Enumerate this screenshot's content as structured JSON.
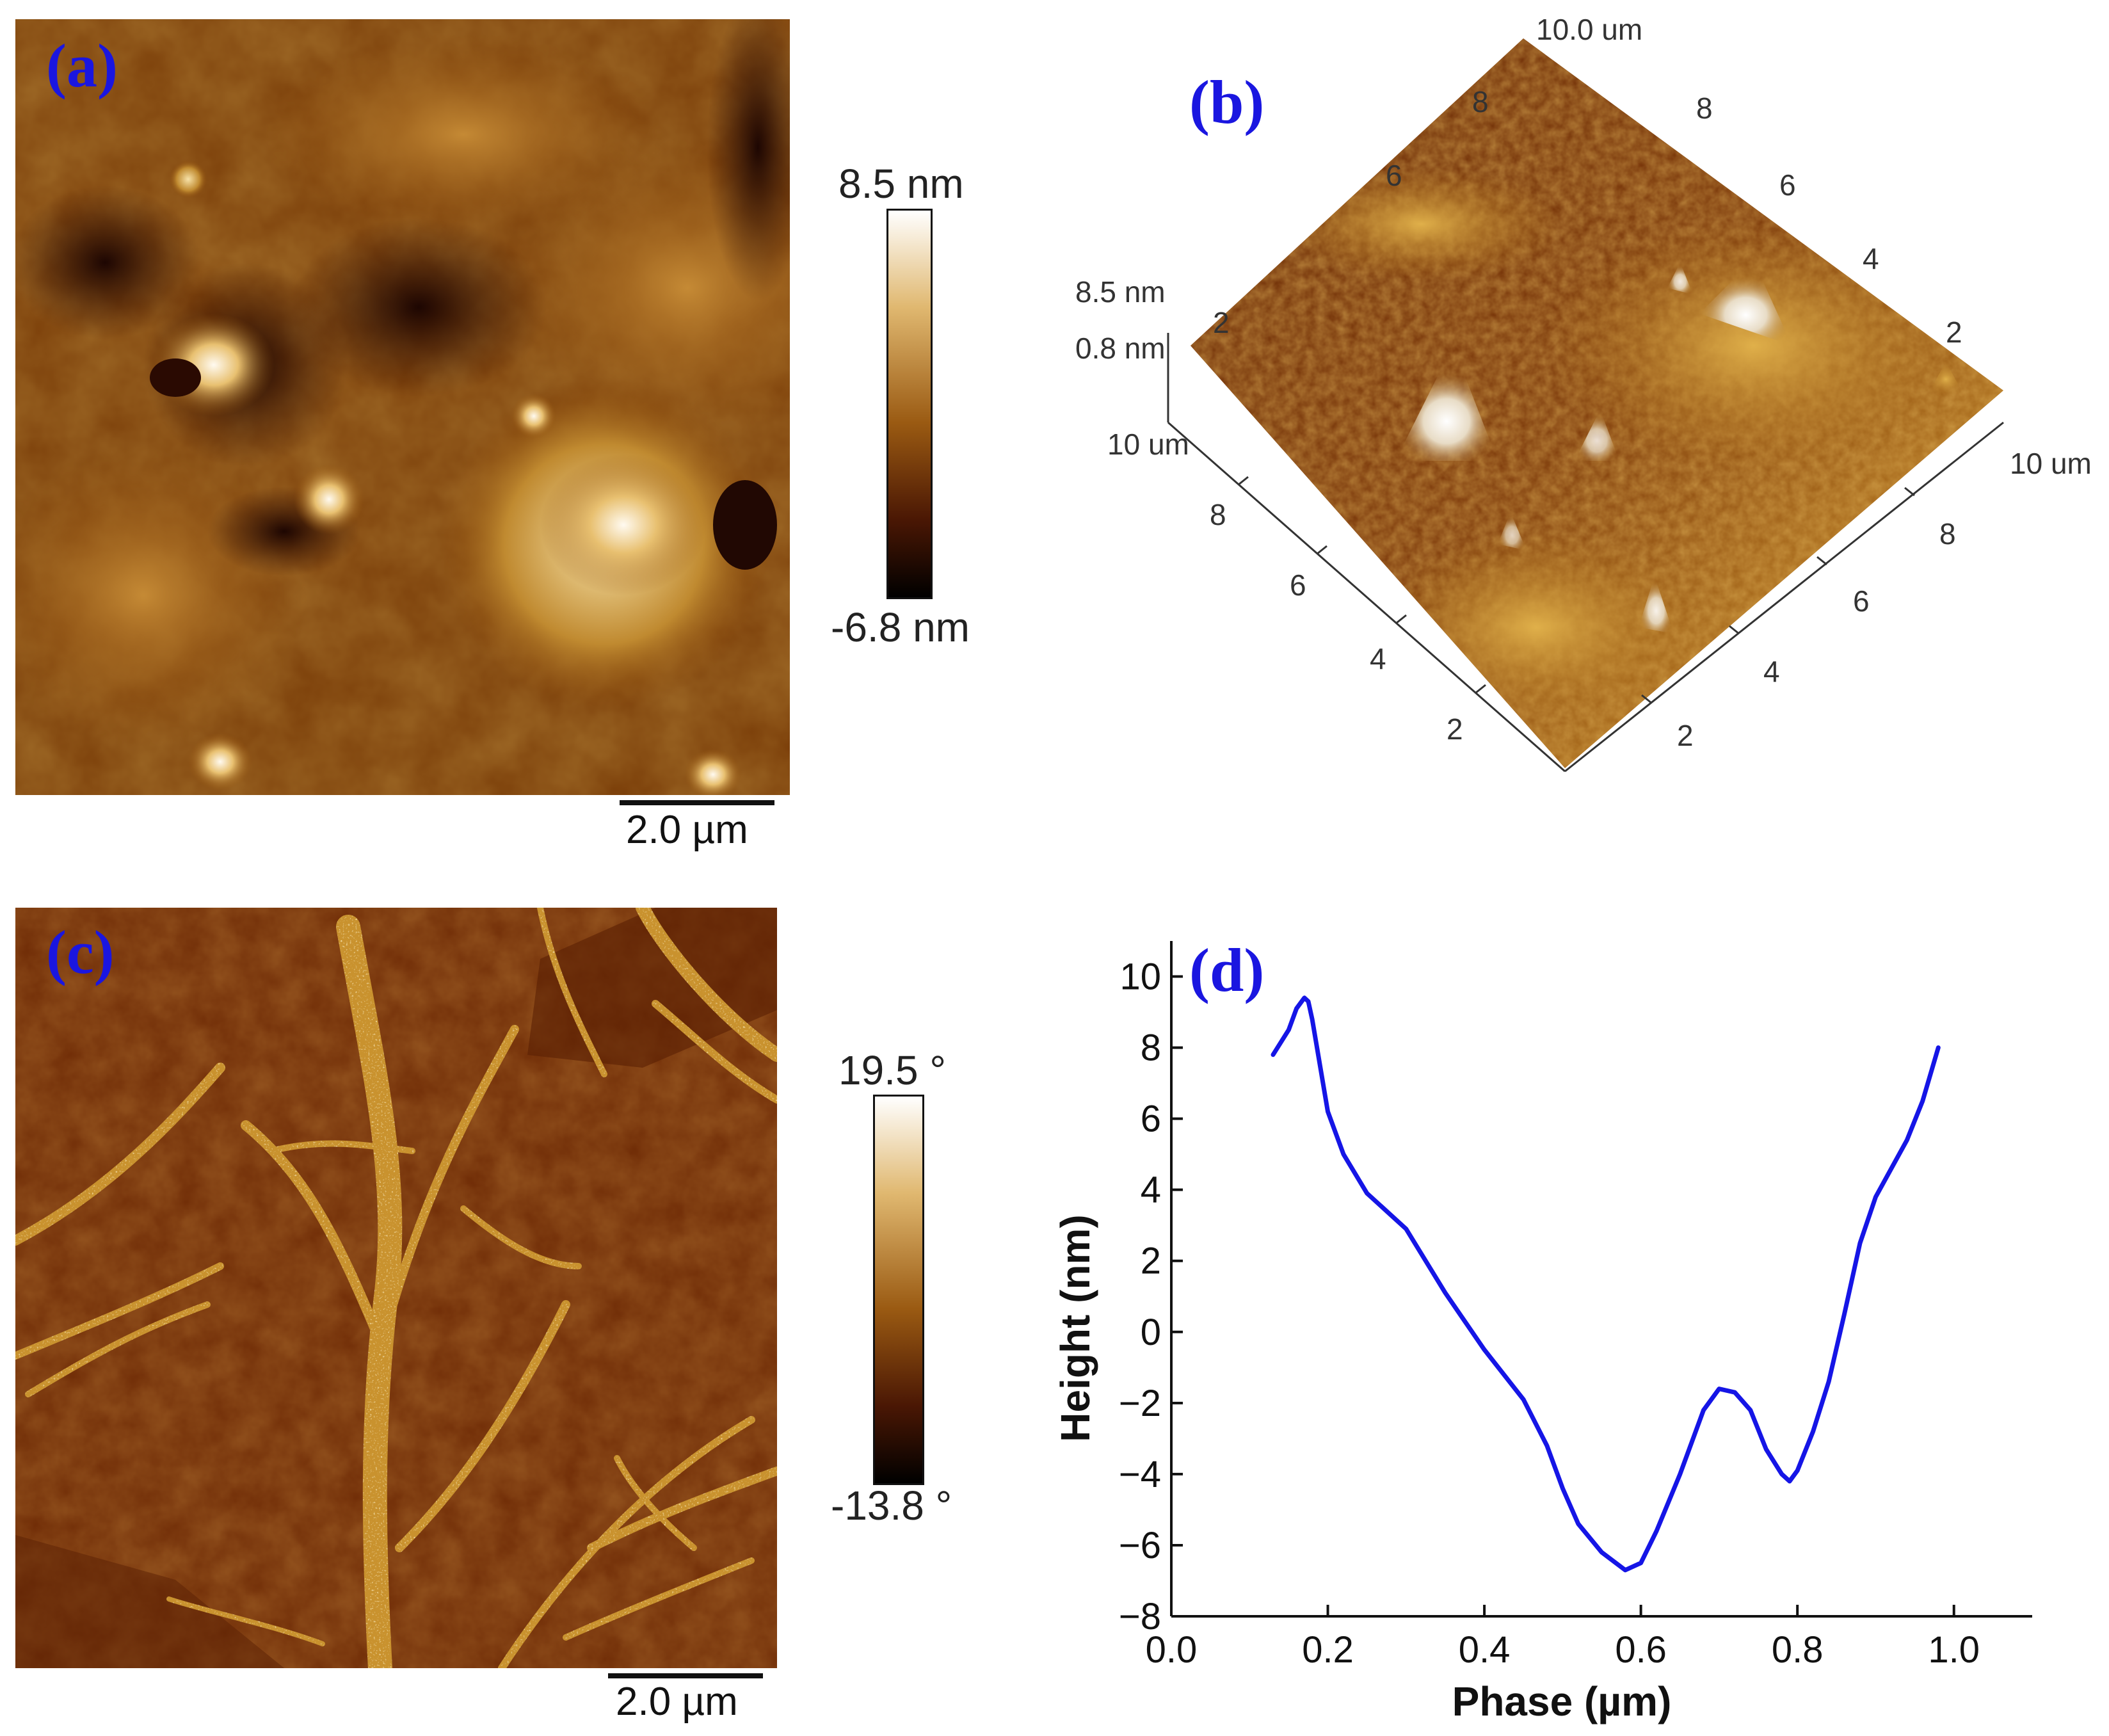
{
  "colors": {
    "label_blue": "#1a16e0",
    "profile_line": "#1515e6",
    "afm_dark": "#3a1203",
    "afm_mid": "#8a4a0c",
    "afm_light": "#fff8e8"
  },
  "panel_a": {
    "label": "(a)",
    "colorbar": {
      "max": "8.5 nm",
      "min": "-6.8 nm"
    },
    "scalebar": "2.0 µm"
  },
  "panel_b": {
    "label": "(b)",
    "z_labels": [
      "8.5 nm",
      "0.8 nm"
    ],
    "axis_end_labels": [
      "10 um",
      "10 um",
      "10.0 um"
    ],
    "tick_labels": [
      "2",
      "4",
      "6",
      "8"
    ]
  },
  "panel_c": {
    "label": "(c)",
    "colorbar": {
      "max": "19.5 °",
      "min": "-13.8 °"
    },
    "scalebar": "2.0 µm"
  },
  "panel_d": {
    "label": "(d)"
  },
  "chart_data": {
    "type": "line",
    "xlabel": "Phase (µm)",
    "ylabel": "Height (nm)",
    "xlim": [
      0.0,
      1.1
    ],
    "ylim": [
      -8,
      11
    ],
    "xticks": [
      "0.0",
      "0.2",
      "0.4",
      "0.6",
      "0.8",
      "1.0"
    ],
    "yticks": [
      "−8",
      "−6",
      "−4",
      "−2",
      "0",
      "2",
      "4",
      "6",
      "8",
      "10"
    ],
    "series": [
      {
        "x": [
          0.13,
          0.15,
          0.16,
          0.17,
          0.175,
          0.18,
          0.19,
          0.2,
          0.22,
          0.25,
          0.3,
          0.35,
          0.4,
          0.45,
          0.48,
          0.5,
          0.52,
          0.55,
          0.58,
          0.6,
          0.62,
          0.65,
          0.68,
          0.7,
          0.72,
          0.74,
          0.76,
          0.78,
          0.79,
          0.8,
          0.82,
          0.84,
          0.86,
          0.88,
          0.9,
          0.92,
          0.94,
          0.96,
          0.98
        ],
        "y": [
          7.8,
          8.5,
          9.1,
          9.4,
          9.3,
          8.8,
          7.5,
          6.2,
          5.0,
          3.9,
          2.9,
          1.1,
          -0.5,
          -1.9,
          -3.2,
          -4.4,
          -5.4,
          -6.2,
          -6.7,
          -6.5,
          -5.6,
          -4.0,
          -2.2,
          -1.6,
          -1.7,
          -2.2,
          -3.3,
          -4.0,
          -4.2,
          -3.9,
          -2.8,
          -1.4,
          0.5,
          2.5,
          3.8,
          4.6,
          5.4,
          6.5,
          8.0
        ]
      }
    ]
  }
}
